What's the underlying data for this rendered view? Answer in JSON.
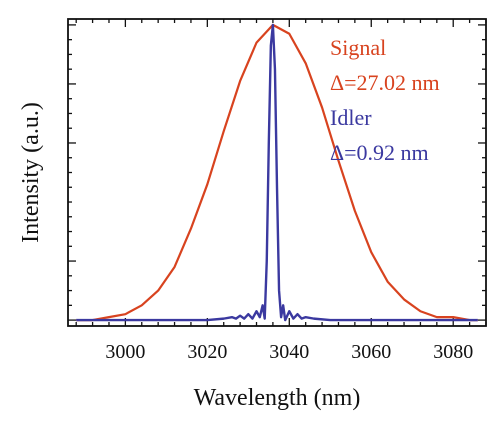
{
  "chart_data": {
    "type": "line",
    "xlabel": "Wavelength (nm)",
    "ylabel": "Intensity (a.u.)",
    "xlim": [
      2986,
      3088
    ],
    "ylim": [
      -0.02,
      1.02
    ],
    "x_ticks": [
      3000,
      3020,
      3040,
      3060,
      3080
    ],
    "x_tick_labels": [
      "3000",
      "3020",
      "3040",
      "3060",
      "3080"
    ],
    "grid": false,
    "y_ticks_shown": false,
    "legend_position": "top-right",
    "series": [
      {
        "name": "Signal",
        "annotation": "Δ=27.02 nm",
        "color": "#d8431f",
        "x": [
          2988,
          2992,
          2996,
          3000,
          3004,
          3008,
          3012,
          3016,
          3020,
          3024,
          3028,
          3032,
          3036,
          3040,
          3044,
          3048,
          3052,
          3056,
          3060,
          3064,
          3068,
          3072,
          3076,
          3080,
          3084,
          3086
        ],
        "y": [
          0.0,
          0.0,
          0.01,
          0.02,
          0.05,
          0.1,
          0.18,
          0.31,
          0.46,
          0.64,
          0.81,
          0.94,
          1.0,
          0.97,
          0.87,
          0.72,
          0.54,
          0.37,
          0.23,
          0.13,
          0.07,
          0.03,
          0.01,
          0.01,
          0.0,
          0.0
        ]
      },
      {
        "name": "Idler",
        "annotation": "Δ=0.92 nm",
        "color": "#3b39a0",
        "x": [
          2988,
          3020,
          3024,
          3026,
          3027,
          3028,
          3029,
          3030,
          3031,
          3032,
          3032.8,
          3033.5,
          3034,
          3034.5,
          3035,
          3035.5,
          3036,
          3036.5,
          3037,
          3037.5,
          3038,
          3038.5,
          3039,
          3040,
          3041,
          3042,
          3043,
          3044,
          3046,
          3050,
          3086
        ],
        "y": [
          0.0,
          0.0,
          0.005,
          0.01,
          0.005,
          0.015,
          0.005,
          0.02,
          0.005,
          0.03,
          0.01,
          0.05,
          0.005,
          0.2,
          0.6,
          0.93,
          1.0,
          0.85,
          0.45,
          0.1,
          0.01,
          0.05,
          0.0,
          0.03,
          0.005,
          0.02,
          0.005,
          0.01,
          0.005,
          0.0,
          0.0
        ]
      }
    ]
  }
}
